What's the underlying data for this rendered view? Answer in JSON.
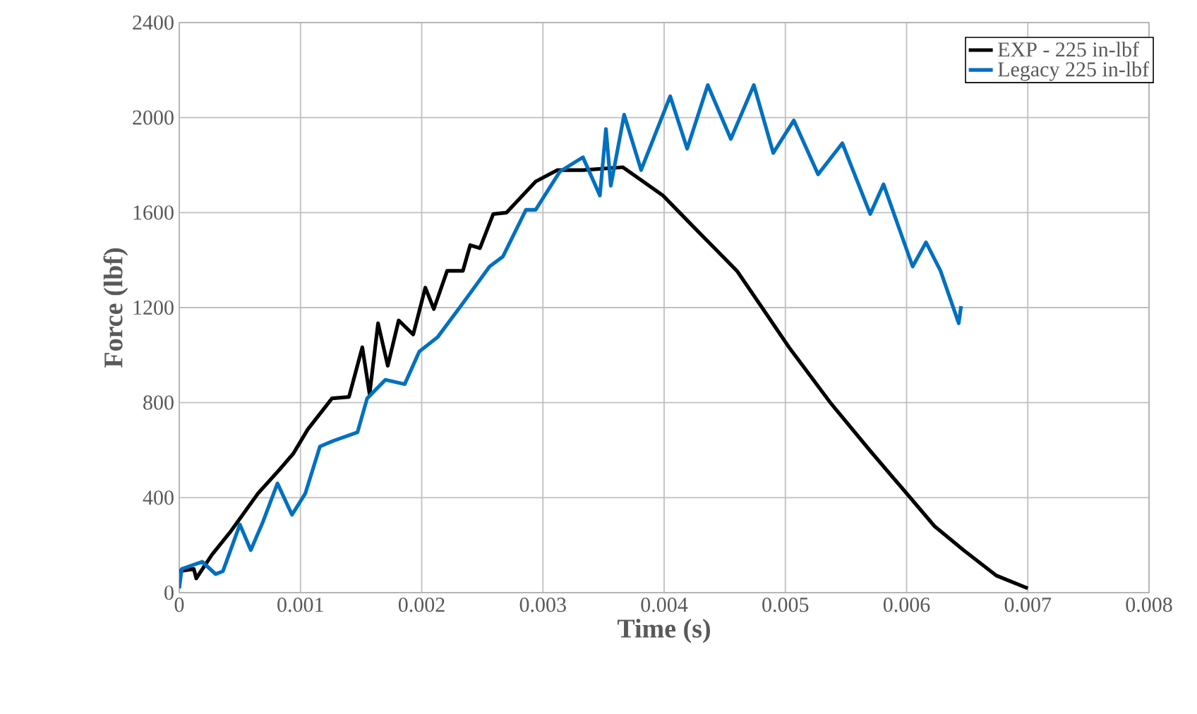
{
  "chart_data": {
    "type": "line",
    "xlabel": "Time (s)",
    "ylabel": "Force (lbf)",
    "xlim": [
      0,
      0.008
    ],
    "ylim": [
      0,
      2400
    ],
    "xticks": [
      0,
      0.001,
      0.002,
      0.003,
      0.004,
      0.005,
      0.006,
      0.007,
      0.008
    ],
    "yticks": [
      0,
      400,
      800,
      1200,
      1600,
      2000,
      2400
    ],
    "grid": true,
    "legend": "top right",
    "marker": "none",
    "line_style": "solid",
    "series": [
      {
        "name": "EXP - 225 in-lbf",
        "color": "#000000",
        "x": [
          0,
          0.00012,
          0.00014,
          0.00027,
          0.00042,
          0.00065,
          0.00083,
          0.00094,
          0.00106,
          0.00126,
          0.0014,
          0.00151,
          0.00157,
          0.00164,
          0.00172,
          0.00181,
          0.00193,
          0.00203,
          0.0021,
          0.00221,
          0.00234,
          0.0024,
          0.00248,
          0.00259,
          0.0027,
          0.00294,
          0.00312,
          0.00333,
          0.00366,
          0.00399,
          0.0043,
          0.0046,
          0.0048,
          0.00503,
          0.00538,
          0.0057,
          0.006,
          0.00623,
          0.00647,
          0.00674,
          0.007
        ],
        "values": [
          90,
          100,
          60,
          160,
          255,
          418,
          520,
          585,
          687,
          818,
          824,
          1033,
          836,
          1134,
          955,
          1146,
          1087,
          1284,
          1194,
          1355,
          1355,
          1463,
          1450,
          1594,
          1600,
          1731,
          1779,
          1779,
          1791,
          1672,
          1510,
          1355,
          1206,
          1033,
          794,
          597,
          418,
          280,
          179,
          72,
          18
        ]
      },
      {
        "name": "Legacy 225 in-lbf",
        "color": "#0070c0",
        "x": [
          0,
          2e-05,
          0.00019,
          0.0003,
          0.00036,
          0.0005,
          0.00059,
          0.00069,
          0.00081,
          0.00093,
          0.00104,
          0.00116,
          0.00127,
          0.00147,
          0.00155,
          0.0017,
          0.00186,
          0.00198,
          0.00213,
          0.00233,
          0.00256,
          0.00267,
          0.00286,
          0.00294,
          0.00314,
          0.00333,
          0.00347,
          0.00352,
          0.00356,
          0.00367,
          0.00381,
          0.00405,
          0.00419,
          0.00436,
          0.00455,
          0.00474,
          0.0049,
          0.00507,
          0.00527,
          0.00547,
          0.0057,
          0.00581,
          0.00605,
          0.00616,
          0.00628,
          0.00643,
          0.00645
        ],
        "values": [
          18,
          100,
          130,
          78,
          90,
          287,
          179,
          298,
          460,
          328,
          418,
          615,
          639,
          675,
          818,
          896,
          878,
          1015,
          1075,
          1212,
          1373,
          1415,
          1612,
          1612,
          1773,
          1833,
          1672,
          1952,
          1713,
          2012,
          1779,
          2090,
          1869,
          2137,
          1910,
          2137,
          1851,
          1988,
          1761,
          1892,
          1594,
          1719,
          1373,
          1475,
          1355,
          1134,
          1206
        ]
      }
    ]
  }
}
